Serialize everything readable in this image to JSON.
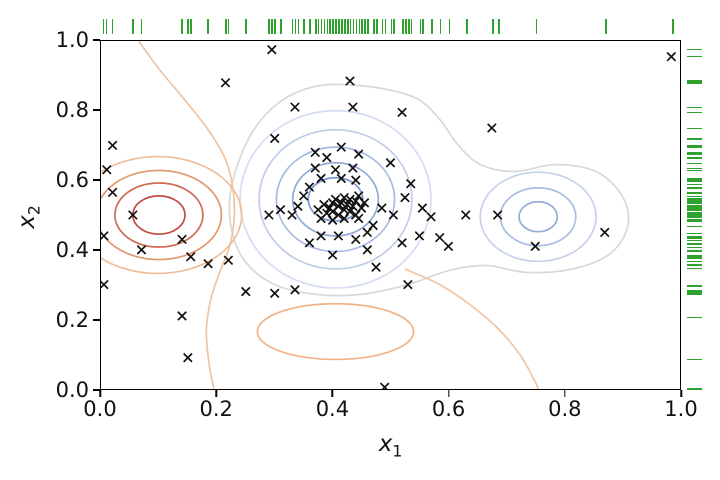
{
  "chart_data": {
    "type": "scatter",
    "title": "",
    "xlabel": {
      "var": "x",
      "sub": "1"
    },
    "ylabel": {
      "var": "x",
      "sub": "2"
    },
    "xlim": [
      0,
      1
    ],
    "ylim": [
      0,
      1
    ],
    "grid": false,
    "legend": "none",
    "xticks": [
      "0.0",
      "0.2",
      "0.4",
      "0.6",
      "0.8",
      "1.0"
    ],
    "yticks": [
      "0.0",
      "0.2",
      "0.4",
      "0.6",
      "0.8",
      "1.0"
    ],
    "marker": "x",
    "marker_color": "#111111",
    "rug_color": "#2ea12e",
    "points": [
      [
        0.375,
        0.515
      ],
      [
        0.385,
        0.53
      ],
      [
        0.39,
        0.505
      ],
      [
        0.395,
        0.52
      ],
      [
        0.4,
        0.535
      ],
      [
        0.4,
        0.51
      ],
      [
        0.405,
        0.545
      ],
      [
        0.41,
        0.525
      ],
      [
        0.41,
        0.5
      ],
      [
        0.415,
        0.535
      ],
      [
        0.42,
        0.515
      ],
      [
        0.42,
        0.55
      ],
      [
        0.425,
        0.53
      ],
      [
        0.43,
        0.545
      ],
      [
        0.43,
        0.51
      ],
      [
        0.435,
        0.525
      ],
      [
        0.44,
        0.54
      ],
      [
        0.44,
        0.5
      ],
      [
        0.445,
        0.555
      ],
      [
        0.45,
        0.52
      ],
      [
        0.455,
        0.535
      ],
      [
        0.38,
        0.49
      ],
      [
        0.4,
        0.485
      ],
      [
        0.42,
        0.49
      ],
      [
        0.445,
        0.49
      ],
      [
        0.33,
        0.5
      ],
      [
        0.34,
        0.525
      ],
      [
        0.35,
        0.555
      ],
      [
        0.31,
        0.515
      ],
      [
        0.29,
        0.5
      ],
      [
        0.36,
        0.58
      ],
      [
        0.38,
        0.605
      ],
      [
        0.415,
        0.605
      ],
      [
        0.44,
        0.6
      ],
      [
        0.37,
        0.635
      ],
      [
        0.405,
        0.63
      ],
      [
        0.435,
        0.635
      ],
      [
        0.39,
        0.665
      ],
      [
        0.415,
        0.695
      ],
      [
        0.445,
        0.675
      ],
      [
        0.37,
        0.68
      ],
      [
        0.5,
        0.65
      ],
      [
        0.485,
        0.52
      ],
      [
        0.505,
        0.5
      ],
      [
        0.525,
        0.55
      ],
      [
        0.535,
        0.59
      ],
      [
        0.555,
        0.52
      ],
      [
        0.57,
        0.495
      ],
      [
        0.46,
        0.45
      ],
      [
        0.44,
        0.43
      ],
      [
        0.41,
        0.44
      ],
      [
        0.38,
        0.44
      ],
      [
        0.36,
        0.42
      ],
      [
        0.4,
        0.385
      ],
      [
        0.46,
        0.4
      ],
      [
        0.52,
        0.42
      ],
      [
        0.475,
        0.35
      ],
      [
        0.55,
        0.44
      ],
      [
        0.47,
        0.47
      ],
      [
        0.295,
        0.975
      ],
      [
        0.985,
        0.955
      ],
      [
        0.215,
        0.88
      ],
      [
        0.43,
        0.885
      ],
      [
        0.335,
        0.81
      ],
      [
        0.435,
        0.81
      ],
      [
        0.52,
        0.795
      ],
      [
        0.675,
        0.75
      ],
      [
        0.3,
        0.72
      ],
      [
        0.02,
        0.7
      ],
      [
        0.01,
        0.63
      ],
      [
        0.02,
        0.565
      ],
      [
        0.055,
        0.5
      ],
      [
        0.005,
        0.44
      ],
      [
        0.07,
        0.4
      ],
      [
        0.005,
        0.3
      ],
      [
        0.14,
        0.43
      ],
      [
        0.155,
        0.38
      ],
      [
        0.185,
        0.36
      ],
      [
        0.22,
        0.37
      ],
      [
        0.14,
        0.21
      ],
      [
        0.15,
        0.09
      ],
      [
        0.25,
        0.28
      ],
      [
        0.3,
        0.275
      ],
      [
        0.335,
        0.285
      ],
      [
        0.6,
        0.41
      ],
      [
        0.585,
        0.435
      ],
      [
        0.63,
        0.5
      ],
      [
        0.685,
        0.5
      ],
      [
        0.75,
        0.41
      ],
      [
        0.87,
        0.45
      ],
      [
        0.49,
        0.005
      ],
      [
        0.53,
        0.3
      ]
    ],
    "contours": [
      {
        "type": "polygon",
        "color": "#d8d8d8",
        "points": [
          [
            0.4,
            0.875
          ],
          [
            0.48,
            0.865
          ],
          [
            0.545,
            0.835
          ],
          [
            0.585,
            0.775
          ],
          [
            0.615,
            0.705
          ],
          [
            0.655,
            0.645
          ],
          [
            0.715,
            0.625
          ],
          [
            0.785,
            0.645
          ],
          [
            0.855,
            0.625
          ],
          [
            0.9,
            0.555
          ],
          [
            0.91,
            0.47
          ],
          [
            0.88,
            0.39
          ],
          [
            0.815,
            0.345
          ],
          [
            0.735,
            0.335
          ],
          [
            0.665,
            0.355
          ],
          [
            0.6,
            0.34
          ],
          [
            0.53,
            0.3
          ],
          [
            0.45,
            0.272
          ],
          [
            0.37,
            0.272
          ],
          [
            0.3,
            0.3
          ],
          [
            0.252,
            0.36
          ],
          [
            0.228,
            0.44
          ],
          [
            0.222,
            0.54
          ],
          [
            0.236,
            0.645
          ],
          [
            0.264,
            0.745
          ],
          [
            0.305,
            0.82
          ],
          [
            0.35,
            0.86
          ]
        ]
      },
      {
        "type": "ellipse",
        "cx": 0.405,
        "cy": 0.545,
        "rx": 0.165,
        "ry": 0.255,
        "color": "#d4ddf1"
      },
      {
        "type": "ellipse",
        "cx": 0.405,
        "cy": 0.545,
        "rx": 0.132,
        "ry": 0.2,
        "color": "#bfcdea"
      },
      {
        "type": "ellipse",
        "cx": 0.405,
        "cy": 0.545,
        "rx": 0.102,
        "ry": 0.15,
        "color": "#a7bbe2"
      },
      {
        "type": "ellipse",
        "cx": 0.405,
        "cy": 0.545,
        "rx": 0.074,
        "ry": 0.105,
        "color": "#90a9da"
      },
      {
        "type": "ellipse",
        "cx": 0.405,
        "cy": 0.545,
        "rx": 0.047,
        "ry": 0.062,
        "color": "#7e9ad2"
      },
      {
        "type": "ellipse",
        "cx": 0.755,
        "cy": 0.495,
        "rx": 0.1,
        "ry": 0.128,
        "color": "#c6d2ec"
      },
      {
        "type": "ellipse",
        "cx": 0.755,
        "cy": 0.495,
        "rx": 0.065,
        "ry": 0.083,
        "color": "#aabde2"
      },
      {
        "type": "ellipse",
        "cx": 0.755,
        "cy": 0.495,
        "rx": 0.033,
        "ry": 0.043,
        "color": "#94abd9"
      },
      {
        "type": "curve",
        "color": "#f2c3a0",
        "points": [
          [
            0.065,
            1.0
          ],
          [
            0.1,
            0.92
          ],
          [
            0.145,
            0.83
          ],
          [
            0.185,
            0.745
          ],
          [
            0.215,
            0.66
          ],
          [
            0.228,
            0.575
          ],
          [
            0.23,
            0.49
          ],
          [
            0.222,
            0.41
          ],
          [
            0.205,
            0.335
          ],
          [
            0.19,
            0.26
          ],
          [
            0.182,
            0.17
          ],
          [
            0.186,
            0.08
          ],
          [
            0.195,
            0.0
          ]
        ]
      },
      {
        "type": "curve",
        "color": "#f2c3a0",
        "points": [
          [
            0.525,
            0.345
          ],
          [
            0.585,
            0.3
          ],
          [
            0.635,
            0.245
          ],
          [
            0.685,
            0.175
          ],
          [
            0.725,
            0.095
          ],
          [
            0.75,
            0.02
          ],
          [
            0.755,
            0.0
          ]
        ]
      },
      {
        "type": "ellipse",
        "cx": 0.405,
        "cy": 0.165,
        "rx": 0.135,
        "ry": 0.08,
        "color": "#f2b288"
      },
      {
        "type": "ellipse",
        "cx": 0.098,
        "cy": 0.5,
        "rx": 0.145,
        "ry": 0.168,
        "color": "#f0bd97"
      },
      {
        "type": "ellipse",
        "cx": 0.1,
        "cy": 0.5,
        "rx": 0.108,
        "ry": 0.128,
        "color": "#e2976f"
      },
      {
        "type": "ellipse",
        "cx": 0.1,
        "cy": 0.5,
        "rx": 0.076,
        "ry": 0.092,
        "color": "#d06a52"
      },
      {
        "type": "ellipse",
        "cx": 0.1,
        "cy": 0.5,
        "rx": 0.045,
        "ry": 0.055,
        "color": "#c14b42"
      }
    ]
  }
}
